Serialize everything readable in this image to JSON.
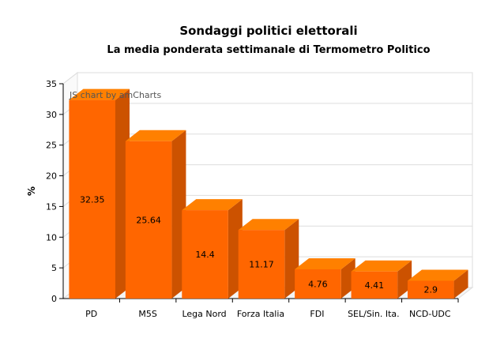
{
  "chart_data": {
    "type": "bar",
    "title": "Sondaggi politici elettorali",
    "subtitle": "La media ponderata settimanale di Termometro Politico",
    "ylabel": "%",
    "xlabel": "",
    "categories": [
      "PD",
      "M5S",
      "Lega Nord",
      "Forza Italia",
      "FDI",
      "SEL/Sin. Ita.",
      "NCD-UDC"
    ],
    "values": [
      32.35,
      25.64,
      14.4,
      11.17,
      4.76,
      4.41,
      2.9
    ],
    "data_labels": [
      "32.35",
      "25.64",
      "14.4",
      "11.17",
      "4.76",
      "4.41",
      "2.9"
    ],
    "ylim": [
      0,
      35
    ],
    "yticks": [
      "0",
      "5",
      "10",
      "15",
      "20",
      "25",
      "30",
      "35"
    ],
    "grid": true,
    "style": "3d-bar",
    "colors": {
      "front": "#ff6600",
      "top": "#ff8000",
      "side": "#cc5200",
      "grid": "#dddddd"
    },
    "watermark": "JS chart by amCharts"
  }
}
